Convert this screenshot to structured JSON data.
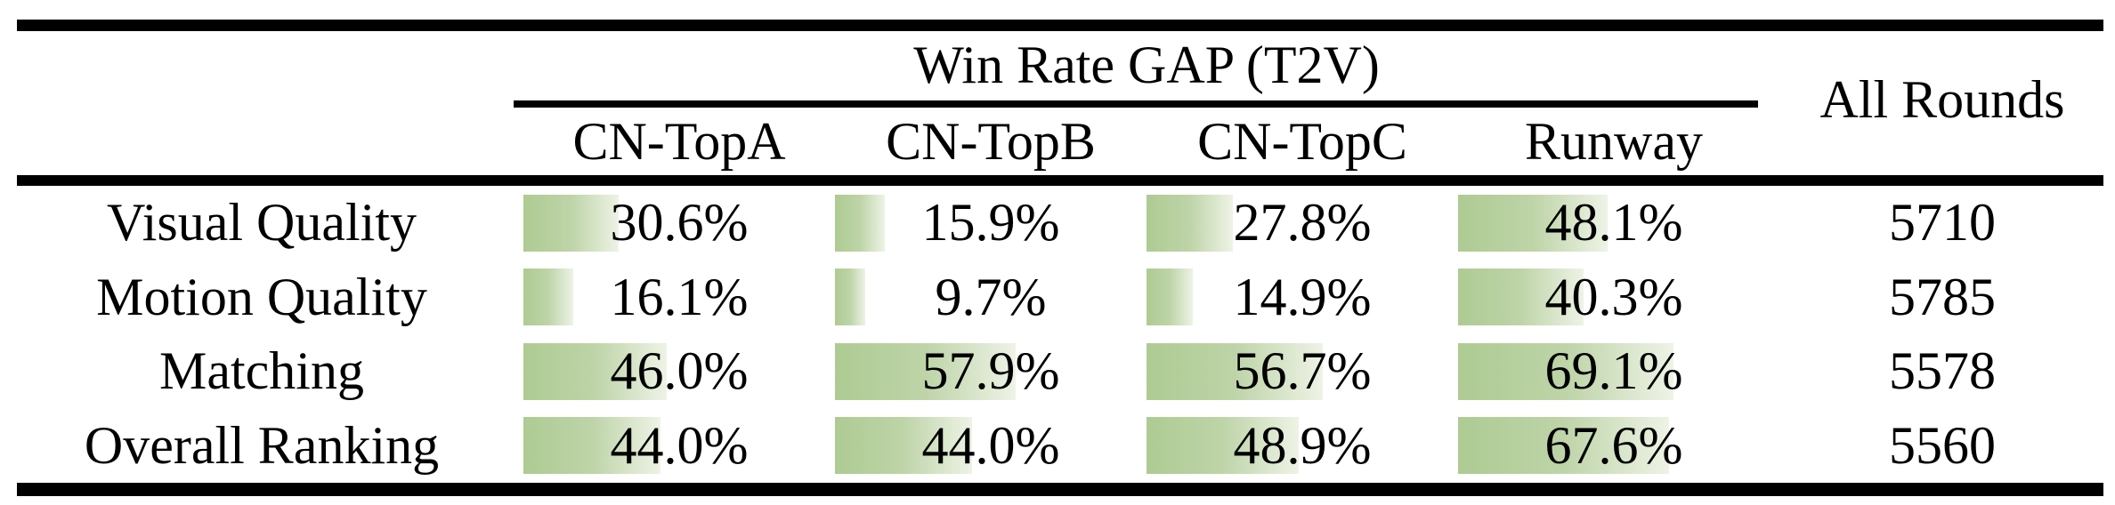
{
  "table": {
    "title": "Win Rate GAP (T2V)",
    "all_rounds_label": "All Rounds",
    "columns": [
      "CN-TopA",
      "CN-TopB",
      "CN-TopC",
      "Runway"
    ],
    "rows": [
      {
        "label": "Visual Quality",
        "cells": [
          {
            "text": "30.6%",
            "value": 30.6
          },
          {
            "text": "15.9%",
            "value": 15.9
          },
          {
            "text": "27.8%",
            "value": 27.8
          },
          {
            "text": "48.1%",
            "value": 48.1
          }
        ],
        "all_rounds": "5710"
      },
      {
        "label": "Motion Quality",
        "cells": [
          {
            "text": "16.1%",
            "value": 16.1
          },
          {
            "text": "9.7%",
            "value": 9.7
          },
          {
            "text": "14.9%",
            "value": 14.9
          },
          {
            "text": "40.3%",
            "value": 40.3
          }
        ],
        "all_rounds": "5785"
      },
      {
        "label": "Matching",
        "cells": [
          {
            "text": "46.0%",
            "value": 46.0
          },
          {
            "text": "57.9%",
            "value": 57.9
          },
          {
            "text": "56.7%",
            "value": 56.7
          },
          {
            "text": "69.1%",
            "value": 69.1
          }
        ],
        "all_rounds": "5578"
      },
      {
        "label": "Overall Ranking",
        "cells": [
          {
            "text": "44.0%",
            "value": 44.0
          },
          {
            "text": "44.0%",
            "value": 44.0
          },
          {
            "text": "48.9%",
            "value": 48.9
          },
          {
            "text": "67.6%",
            "value": 67.6
          }
        ],
        "all_rounds": "5560"
      }
    ],
    "bar_color_start": "#aecb93",
    "bar_color_mid": "#bed4a8",
    "bar_color_end": "#eef3e6",
    "text_color": "#000000"
  },
  "chart_data": {
    "type": "table",
    "title": "Win Rate GAP (T2V)",
    "columns": [
      "",
      "CN-TopA",
      "CN-TopB",
      "CN-TopC",
      "Runway",
      "All Rounds"
    ],
    "rows": [
      [
        "Visual Quality",
        30.6,
        15.9,
        27.8,
        48.1,
        5710
      ],
      [
        "Motion Quality",
        16.1,
        9.7,
        14.9,
        40.3,
        5785
      ],
      [
        "Matching",
        46.0,
        57.9,
        56.7,
        69.1,
        5578
      ],
      [
        "Overall Ranking",
        44.0,
        44.0,
        48.9,
        67.6,
        5560
      ]
    ],
    "notes": "Percent cells carry green data bars whose width equals the percent value of the cell width (0-100% scale), gradient green to white, left-aligned"
  }
}
